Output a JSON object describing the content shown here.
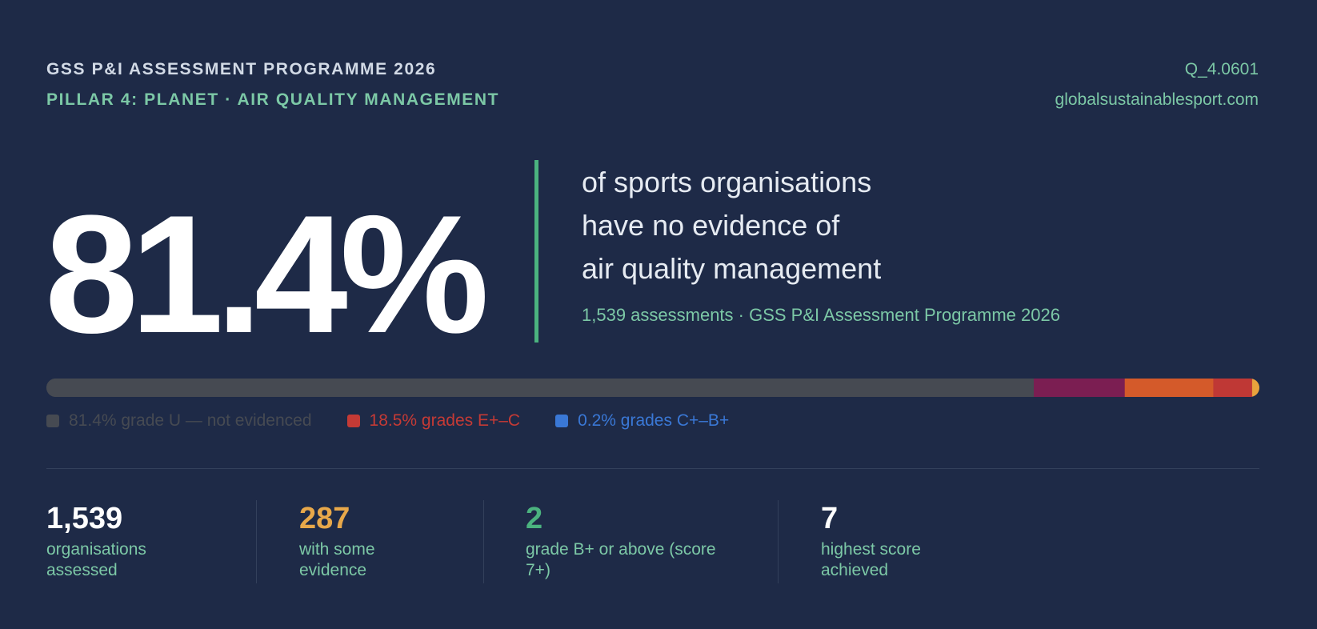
{
  "header": {
    "programme": "GSS P&I ASSESSMENT PROGRAMME 2026",
    "pillar": "PILLAR 4: PLANET · AIR QUALITY MANAGEMENT",
    "question_id": "Q_4.0601",
    "website": "globalsustainablesport.com"
  },
  "headline": {
    "percent": "81.4%",
    "lines": [
      "of sports organisations",
      "have no evidence of",
      "air quality management"
    ],
    "source": "1,539 assessments · GSS P&I Assessment Programme 2026"
  },
  "chart_data": {
    "type": "bar",
    "orientation": "horizontal-stacked",
    "total": 100,
    "segments": [
      {
        "value": 81.4,
        "color": "#464a52"
      },
      {
        "value": 7.5,
        "color": "#7b1e52"
      },
      {
        "value": 7.3,
        "color": "#d45a2a"
      },
      {
        "value": 3.2,
        "color": "#bf3835"
      },
      {
        "value": 0.6,
        "color": "#e8a33d"
      }
    ],
    "legend": [
      {
        "label": "81.4% grade U — not evidenced",
        "color": "#464a52"
      },
      {
        "label": "18.5% grades E+–C",
        "color": "#c53a35"
      },
      {
        "label": "0.2% grades C+–B+",
        "color": "#3a78d6"
      }
    ]
  },
  "stats": [
    {
      "value": "1,539",
      "label": [
        "organisations",
        "assessed"
      ],
      "color": "#ffffff"
    },
    {
      "value": "287",
      "label": [
        "with some",
        "evidence"
      ],
      "color": "#e8a84a"
    },
    {
      "value": "2",
      "label": [
        "grade B+ or above (score",
        "7+)"
      ],
      "color": "#4bb37f"
    },
    {
      "value": "7",
      "label": [
        "highest score",
        "achieved"
      ],
      "color": "#ffffff"
    }
  ]
}
